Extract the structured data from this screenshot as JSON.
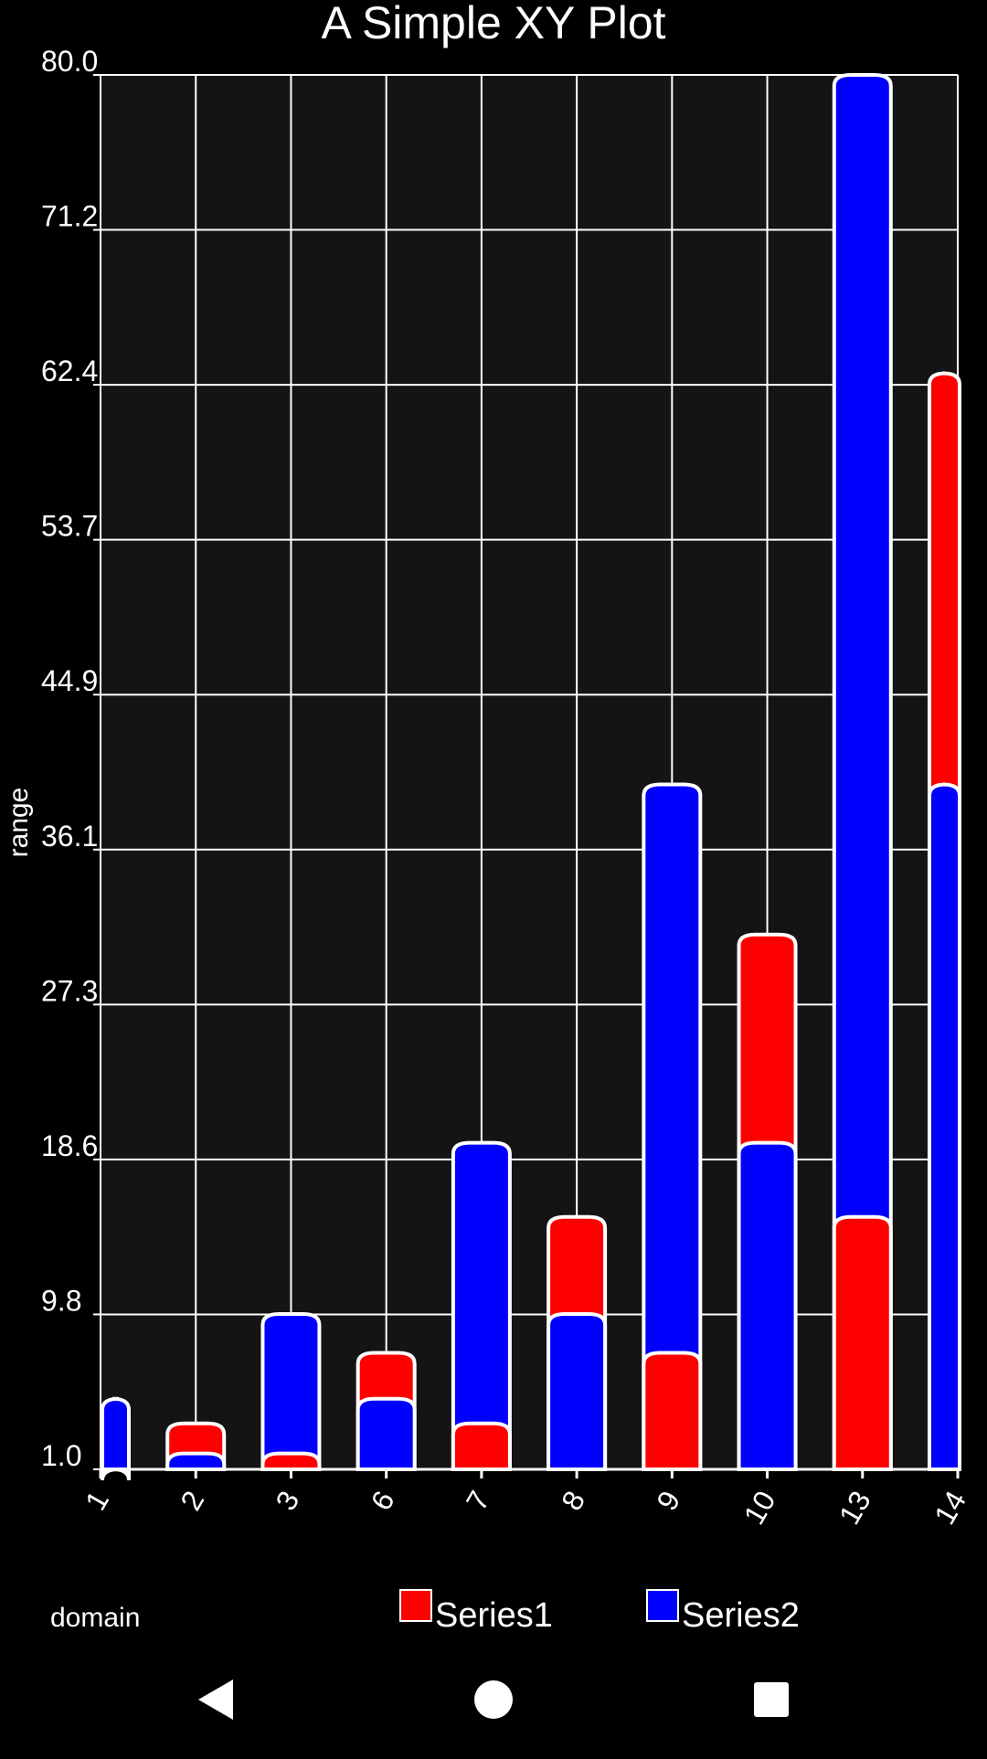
{
  "chart_data": {
    "type": "bar",
    "title": "A Simple XY Plot",
    "xlabel": "domain",
    "ylabel": "range",
    "categories": [
      "1",
      "2",
      "3",
      "6",
      "7",
      "8",
      "9",
      "10",
      "13",
      "14"
    ],
    "series": [
      {
        "name": "Series1",
        "color": "#ff0000",
        "values": [
          1.0,
          3.6,
          1.9,
          7.6,
          3.6,
          15.3,
          7.6,
          31.3,
          15.3,
          63.1
        ]
      },
      {
        "name": "Series2",
        "color": "#0000ff",
        "values": [
          5.0,
          1.9,
          9.8,
          5.0,
          19.5,
          9.8,
          39.8,
          19.5,
          80.0,
          39.8
        ]
      }
    ],
    "ylim": [
      1.0,
      80.0
    ],
    "yticks": [
      "1.0",
      "9.8",
      "18.6",
      "27.3",
      "36.1",
      "44.9",
      "53.7",
      "62.4",
      "71.2",
      "80.0"
    ],
    "grid": true,
    "legend_position": "bottom"
  },
  "navbar": {
    "icons": [
      "back-icon",
      "home-icon",
      "recents-icon"
    ]
  }
}
